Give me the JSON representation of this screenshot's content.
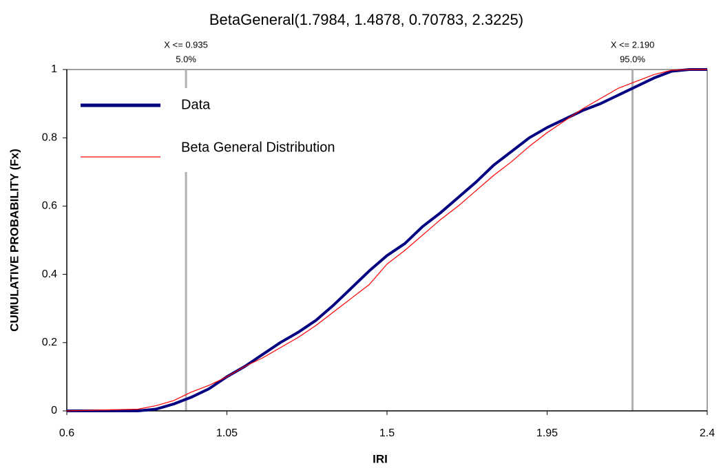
{
  "chart_data": {
    "type": "line",
    "title": "BetaGeneral(1.7984, 1.4878, 0.70783, 2.3225)",
    "x_label": "IRI",
    "y_label": "CUMULATIVE PROBABILITY (Fx)",
    "x": [
      0.6,
      0.8,
      0.85,
      0.9,
      0.95,
      1.0,
      1.05,
      1.1,
      1.15,
      1.2,
      1.25,
      1.3,
      1.35,
      1.4,
      1.45,
      1.5,
      1.55,
      1.6,
      1.65,
      1.7,
      1.75,
      1.8,
      1.85,
      1.9,
      1.95,
      2.0,
      2.05,
      2.1,
      2.15,
      2.2,
      2.25,
      2.3,
      2.35,
      2.4
    ],
    "series": [
      {
        "name": "Data",
        "color": "#000080",
        "values": [
          0,
          0,
          0.005,
          0.02,
          0.04,
          0.065,
          0.1,
          0.13,
          0.165,
          0.2,
          0.23,
          0.265,
          0.31,
          0.36,
          0.41,
          0.455,
          0.49,
          0.54,
          0.58,
          0.625,
          0.67,
          0.72,
          0.76,
          0.8,
          0.83,
          0.855,
          0.88,
          0.9,
          0.925,
          0.95,
          0.975,
          0.995,
          1,
          1
        ]
      },
      {
        "name": "Beta General Distribution",
        "color": "#ff0000",
        "values": [
          0,
          0.005,
          0.015,
          0.03,
          0.055,
          0.075,
          0.1,
          0.13,
          0.155,
          0.185,
          0.215,
          0.25,
          0.29,
          0.33,
          0.37,
          0.43,
          0.47,
          0.515,
          0.56,
          0.6,
          0.645,
          0.69,
          0.73,
          0.775,
          0.815,
          0.85,
          0.885,
          0.915,
          0.945,
          0.965,
          0.985,
          0.998,
          1,
          1
        ]
      }
    ],
    "percentiles": [
      {
        "value": 0.935,
        "label": "X <= 0.935",
        "prob_label": "5.0%"
      },
      {
        "value": 2.19,
        "label": "X <= 2.190",
        "prob_label": "95.0%"
      }
    ],
    "xlim": [
      0.6,
      2.4
    ],
    "xticks": [
      0.6,
      1.05,
      1.5,
      1.95,
      2.4
    ],
    "ylim": [
      0,
      1
    ],
    "yticks": [
      0,
      0.2,
      0.4,
      0.6,
      0.8,
      1
    ]
  }
}
